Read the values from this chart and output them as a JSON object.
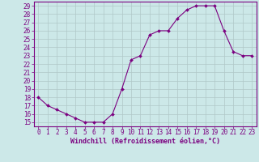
{
  "x": [
    0,
    1,
    2,
    3,
    4,
    5,
    6,
    7,
    8,
    9,
    10,
    11,
    12,
    13,
    14,
    15,
    16,
    17,
    18,
    19,
    20,
    21,
    22,
    23
  ],
  "y": [
    18,
    17,
    16.5,
    16,
    15.5,
    15,
    15,
    15,
    16,
    19,
    22.5,
    23,
    25.5,
    26,
    26,
    27.5,
    28.5,
    29,
    29,
    29,
    26,
    23.5,
    23,
    23
  ],
  "line_color": "#7b0080",
  "marker": "D",
  "marker_size": 2.0,
  "bg_color": "#cce8e8",
  "grid_color": "#b0c8c8",
  "xlabel": "Windchill (Refroidissement éolien,°C)",
  "xlabel_color": "#7b0080",
  "tick_color": "#7b0080",
  "spine_color": "#7b0080",
  "ylim": [
    14.5,
    29.5
  ],
  "xlim": [
    -0.5,
    23.5
  ],
  "yticks": [
    15,
    16,
    17,
    18,
    19,
    20,
    21,
    22,
    23,
    24,
    25,
    26,
    27,
    28,
    29
  ],
  "xticks": [
    0,
    1,
    2,
    3,
    4,
    5,
    6,
    7,
    8,
    9,
    10,
    11,
    12,
    13,
    14,
    15,
    16,
    17,
    18,
    19,
    20,
    21,
    22,
    23
  ],
  "tick_fontsize": 5.5,
  "xlabel_fontsize": 6.0
}
